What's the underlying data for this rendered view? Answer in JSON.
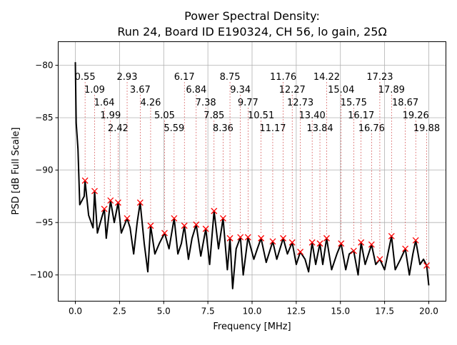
{
  "chart_data": {
    "type": "line",
    "title": "Power Spectral Density:",
    "subtitle": "Run 24, Board ID E190324, CH 56, lo gain, 25Ω",
    "xlabel": "Frequency [MHz]",
    "ylabel": "PSD [dB Full Scale]",
    "xlim": [
      -0.97,
      20.97
    ],
    "ylim": [
      -102.5,
      -77.75
    ],
    "grid": true,
    "xticks": [
      0,
      2.5,
      5,
      7.5,
      10,
      12.5,
      15,
      17.5,
      20
    ],
    "xtick_labels": [
      "0.0",
      "2.5",
      "5.0",
      "7.5",
      "10.0",
      "12.5",
      "15.0",
      "17.5",
      "20.0"
    ],
    "yticks": [
      -80,
      -85,
      -90,
      -95,
      -100
    ],
    "ytick_labels": [
      "−80",
      "−85",
      "−90",
      "−95",
      "−100"
    ],
    "line_color": "#000000",
    "marker_color": "#ff0000",
    "series": [
      {
        "name": "PSD",
        "x": [
          0,
          0.05,
          0.15,
          0.25,
          0.5,
          0.55,
          0.75,
          1.0,
          1.09,
          1.25,
          1.5,
          1.64,
          1.75,
          1.99,
          2.2,
          2.42,
          2.6,
          2.93,
          3.1,
          3.3,
          3.5,
          3.67,
          3.9,
          4.1,
          4.26,
          4.5,
          4.75,
          5.05,
          5.3,
          5.59,
          5.8,
          6.0,
          6.17,
          6.4,
          6.6,
          6.84,
          7.1,
          7.38,
          7.6,
          7.85,
          8.1,
          8.36,
          8.6,
          8.75,
          8.9,
          9.1,
          9.34,
          9.5,
          9.77,
          10.1,
          10.3,
          10.51,
          10.8,
          11.17,
          11.4,
          11.76,
          12.0,
          12.27,
          12.5,
          12.73,
          13.0,
          13.2,
          13.4,
          13.6,
          13.84,
          14.0,
          14.22,
          14.5,
          14.8,
          15.04,
          15.3,
          15.5,
          15.75,
          16.0,
          16.17,
          16.4,
          16.76,
          17.0,
          17.23,
          17.5,
          17.89,
          18.1,
          18.4,
          18.67,
          18.9,
          19.1,
          19.26,
          19.5,
          19.7,
          19.88,
          20.0
        ],
        "y": [
          -79.7,
          -85.5,
          -88,
          -93.3,
          -92.5,
          -91.0,
          -94.3,
          -95.5,
          -92.0,
          -96,
          -94.5,
          -93.7,
          -96.5,
          -92.9,
          -95,
          -93.1,
          -96,
          -94.6,
          -95.5,
          -98,
          -95,
          -93.1,
          -97,
          -99.7,
          -95.3,
          -98,
          -97,
          -96.0,
          -97.5,
          -94.6,
          -98,
          -97,
          -95.3,
          -98.5,
          -96.5,
          -95.2,
          -98.2,
          -95.6,
          -99,
          -93.9,
          -97.5,
          -94.6,
          -99.5,
          -96.5,
          -101.3,
          -97.5,
          -96.4,
          -100,
          -96.4,
          -98.5,
          -97.5,
          -96.5,
          -98.8,
          -96.8,
          -98.5,
          -96.5,
          -98,
          -96.9,
          -99,
          -97.8,
          -98.5,
          -99.7,
          -96.9,
          -99,
          -97.0,
          -99,
          -96.5,
          -99.5,
          -98,
          -97.0,
          -99.5,
          -98,
          -97.7,
          -100,
          -96.9,
          -99,
          -97.1,
          -99,
          -98.5,
          -99.5,
          -96.3,
          -99.5,
          -98.5,
          -97.5,
          -100,
          -98,
          -96.7,
          -99,
          -98.5,
          -99.1,
          -101
        ]
      }
    ],
    "peaks": [
      {
        "x": 0.55,
        "y": -91.0,
        "label": "0.55"
      },
      {
        "x": 1.09,
        "y": -92.0,
        "label": "1.09"
      },
      {
        "x": 1.64,
        "y": -93.7,
        "label": "1.64"
      },
      {
        "x": 1.99,
        "y": -92.9,
        "label": "1.99"
      },
      {
        "x": 2.42,
        "y": -93.1,
        "label": "2.42"
      },
      {
        "x": 2.93,
        "y": -94.6,
        "label": "2.93"
      },
      {
        "x": 3.67,
        "y": -93.1,
        "label": "3.67"
      },
      {
        "x": 4.26,
        "y": -95.3,
        "label": "4.26"
      },
      {
        "x": 5.05,
        "y": -96.0,
        "label": "5.05"
      },
      {
        "x": 5.59,
        "y": -94.6,
        "label": "5.59"
      },
      {
        "x": 6.17,
        "y": -95.3,
        "label": "6.17"
      },
      {
        "x": 6.84,
        "y": -95.2,
        "label": "6.84"
      },
      {
        "x": 7.38,
        "y": -95.6,
        "label": "7.38"
      },
      {
        "x": 7.85,
        "y": -93.9,
        "label": "7.85"
      },
      {
        "x": 8.36,
        "y": -94.6,
        "label": "8.36"
      },
      {
        "x": 8.75,
        "y": -96.5,
        "label": "8.75"
      },
      {
        "x": 9.34,
        "y": -96.4,
        "label": "9.34"
      },
      {
        "x": 9.77,
        "y": -96.4,
        "label": "9.77"
      },
      {
        "x": 10.51,
        "y": -96.5,
        "label": "10.51"
      },
      {
        "x": 11.17,
        "y": -96.8,
        "label": "11.17"
      },
      {
        "x": 11.76,
        "y": -96.5,
        "label": "11.76"
      },
      {
        "x": 12.27,
        "y": -96.9,
        "label": "12.27"
      },
      {
        "x": 12.73,
        "y": -97.8,
        "label": "12.73"
      },
      {
        "x": 13.4,
        "y": -96.9,
        "label": "13.40"
      },
      {
        "x": 13.84,
        "y": -97.0,
        "label": "13.84"
      },
      {
        "x": 14.22,
        "y": -96.5,
        "label": "14.22"
      },
      {
        "x": 15.04,
        "y": -97.0,
        "label": "15.04"
      },
      {
        "x": 15.75,
        "y": -97.7,
        "label": "15.75"
      },
      {
        "x": 16.17,
        "y": -96.9,
        "label": "16.17"
      },
      {
        "x": 16.76,
        "y": -97.1,
        "label": "16.76"
      },
      {
        "x": 17.23,
        "y": -98.5,
        "label": "17.23"
      },
      {
        "x": 17.89,
        "y": -96.3,
        "label": "17.89"
      },
      {
        "x": 18.67,
        "y": -97.5,
        "label": "18.67"
      },
      {
        "x": 19.26,
        "y": -96.7,
        "label": "19.26"
      },
      {
        "x": 19.88,
        "y": -99.1,
        "label": "19.88"
      }
    ]
  }
}
